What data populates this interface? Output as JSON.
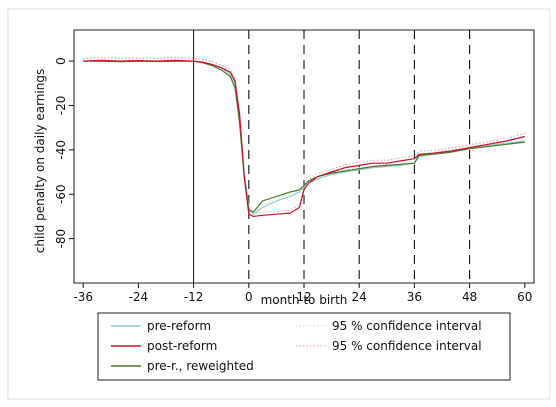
{
  "chart_data": {
    "type": "line",
    "title": "",
    "xlabel": "month to birth",
    "ylabel": "child penalty on daily earnings",
    "xlim": [
      -38,
      62
    ],
    "ylim": [
      -100,
      14
    ],
    "xticks": [
      -36,
      -24,
      -12,
      0,
      12,
      24,
      36,
      48,
      60
    ],
    "yticks": [
      0,
      -20,
      -40,
      -60,
      -80
    ],
    "grid": false,
    "legend_position": "bottom",
    "reference_lines": {
      "solid": [
        -12
      ],
      "dashed": [
        0,
        12,
        24,
        36,
        48
      ]
    },
    "series": [
      {
        "name": "pre-reform",
        "color": "#8fcfc9",
        "dash": "solid",
        "x": [
          -36,
          -32,
          -28,
          -24,
          -20,
          -16,
          -12,
          -10,
          -8,
          -6,
          -4,
          -3,
          -2,
          -1,
          0,
          1,
          3,
          6,
          9,
          11,
          12,
          13,
          15,
          18,
          21,
          24,
          27,
          30,
          33,
          36,
          37,
          40,
          44,
          48,
          52,
          56,
          60
        ],
        "y": [
          0,
          0,
          0,
          0,
          0,
          0,
          0,
          -0.5,
          -1.5,
          -3,
          -6,
          -10,
          -25,
          -50,
          -66,
          -69,
          -66,
          -63,
          -61,
          -59,
          -57,
          -55,
          -53,
          -51,
          -50,
          -49,
          -48,
          -47.5,
          -47,
          -46,
          -43,
          -42,
          -41,
          -39,
          -38,
          -37,
          -36
        ]
      },
      {
        "name": "post-reform",
        "color": "#c8102e",
        "dash": "solid",
        "x": [
          -36,
          -32,
          -28,
          -24,
          -20,
          -16,
          -12,
          -10,
          -8,
          -6,
          -4,
          -3,
          -2,
          -1,
          0,
          1,
          3,
          6,
          9,
          11,
          12,
          13,
          15,
          18,
          21,
          24,
          27,
          30,
          33,
          36,
          37,
          40,
          44,
          48,
          52,
          56,
          60
        ],
        "y": [
          0,
          0.3,
          0,
          0.2,
          0,
          0.3,
          0,
          -0.5,
          -1.5,
          -3,
          -5,
          -9,
          -24,
          -52,
          -69,
          -70,
          -69.5,
          -69,
          -68.5,
          -66,
          -58,
          -55,
          -52,
          -50,
          -48,
          -47,
          -46,
          -46,
          -45,
          -44,
          -42,
          -41.5,
          -40.5,
          -39,
          -37.5,
          -36,
          -34
        ]
      },
      {
        "name": "pre-r., reweighted",
        "color": "#4a7a2c",
        "dash": "solid",
        "x": [
          -36,
          -32,
          -28,
          -24,
          -20,
          -16,
          -12,
          -10,
          -8,
          -6,
          -4,
          -3,
          -2,
          -1,
          0,
          1,
          3,
          6,
          9,
          11,
          12,
          13,
          15,
          18,
          21,
          24,
          27,
          30,
          33,
          36,
          37,
          40,
          44,
          48,
          52,
          56,
          60
        ],
        "y": [
          0,
          0,
          -0.3,
          0,
          -0.2,
          0,
          0,
          -0.8,
          -2,
          -4,
          -7,
          -12,
          -28,
          -52,
          -67,
          -68,
          -63,
          -61,
          -59,
          -58,
          -56,
          -54,
          -52,
          -50.5,
          -49.5,
          -48.5,
          -47.5,
          -47,
          -46.5,
          -46,
          -42.5,
          -42,
          -41,
          -39.5,
          -38.5,
          -37.5,
          -36.5
        ]
      },
      {
        "name": "95 % confidence interval",
        "color": "#d6d6d6",
        "dash": "dotted",
        "x": [
          -36,
          -32,
          -28,
          -24,
          -20,
          -16,
          -12,
          -10,
          -8,
          -6,
          -4,
          -3,
          -2,
          -1,
          0,
          1,
          3,
          6,
          9,
          11,
          12,
          13,
          15,
          18,
          21,
          24,
          27,
          30,
          33,
          36,
          37,
          40,
          44,
          48,
          52,
          56,
          60
        ],
        "y": [
          1,
          1,
          1,
          1,
          1,
          1,
          1,
          0.5,
          -0.5,
          -2,
          -5,
          -9,
          -24,
          -49,
          -65,
          -68,
          -65,
          -62,
          -60,
          -58,
          -56,
          -54,
          -52,
          -50,
          -49,
          -48,
          -47,
          -46.5,
          -46,
          -45,
          -42,
          -41,
          -40,
          -38,
          -37,
          -36,
          -35
        ]
      },
      {
        "name": "95 % confidence interval",
        "color": "#d9a3ac",
        "dash": "dotted",
        "x": [
          -36,
          -32,
          -28,
          -24,
          -20,
          -16,
          -12,
          -10,
          -8,
          -6,
          -4,
          -3,
          -2,
          -1,
          0,
          1,
          3,
          6,
          9,
          11,
          12,
          13,
          15,
          18,
          21,
          24,
          27,
          30,
          33,
          36,
          37,
          40,
          44,
          48,
          52,
          56,
          60
        ],
        "y": [
          1.3,
          1.6,
          1.3,
          1.5,
          1.3,
          1.6,
          1.3,
          0.8,
          -0.2,
          -1.7,
          -3.7,
          -7.7,
          -22.7,
          -50.7,
          -67.7,
          -68.7,
          -68.2,
          -67.7,
          -67.2,
          -64.7,
          -56.7,
          -53.7,
          -50.7,
          -48.7,
          -46.7,
          -45.7,
          -44.7,
          -44.7,
          -43.7,
          -42.7,
          -40.7,
          -40.2,
          -39.2,
          -37.7,
          -36.2,
          -34.7,
          -32.7
        ]
      }
    ]
  }
}
